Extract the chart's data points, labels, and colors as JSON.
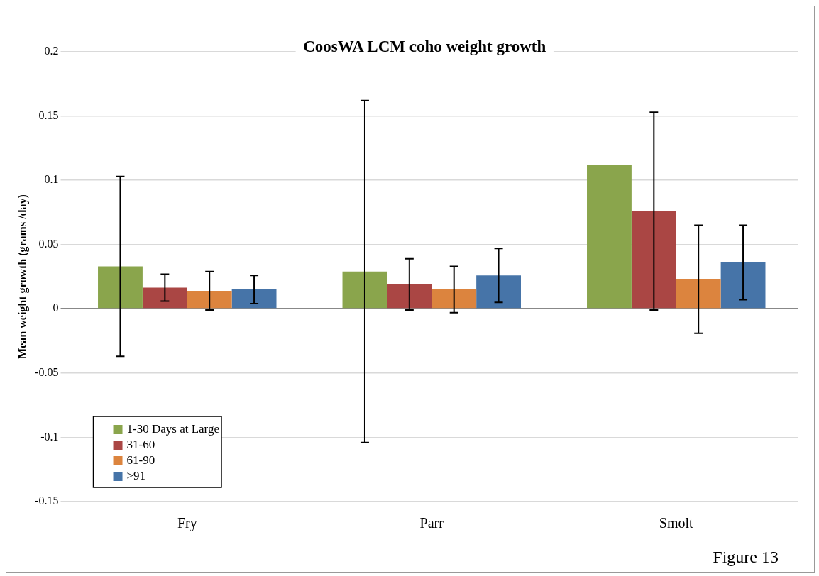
{
  "chart_data": {
    "type": "bar",
    "title": "CoosWA LCM coho weight growth",
    "ylabel": "Mean weight growth (grams /day)",
    "categories": [
      "Fry",
      "Parr",
      "Smolt"
    ],
    "series": [
      {
        "name": "1-30 Days at Large",
        "color": "#8aa54c",
        "values": [
          0.033,
          0.029,
          0.112
        ],
        "errors": [
          0.07,
          0.133,
          null
        ]
      },
      {
        "name": "31-60",
        "color": "#aa4644",
        "values": [
          0.0165,
          0.019,
          0.076
        ],
        "errors": [
          0.0105,
          0.02,
          0.077
        ]
      },
      {
        "name": "61-90",
        "color": "#dc843e",
        "values": [
          0.014,
          0.015,
          0.023
        ],
        "errors": [
          0.015,
          0.018,
          0.042
        ]
      },
      {
        "name": ">91",
        "color": "#4674a8",
        "values": [
          0.015,
          0.026,
          0.036
        ],
        "errors": [
          0.011,
          0.021,
          0.029
        ]
      }
    ],
    "ylim": [
      -0.15,
      0.2
    ],
    "yticks": [
      -0.15,
      -0.1,
      -0.05,
      0,
      0.05,
      0.1,
      0.15,
      0.2
    ],
    "grid": "y",
    "legend": "bottom left",
    "annotations": [
      "Figure 13"
    ]
  }
}
